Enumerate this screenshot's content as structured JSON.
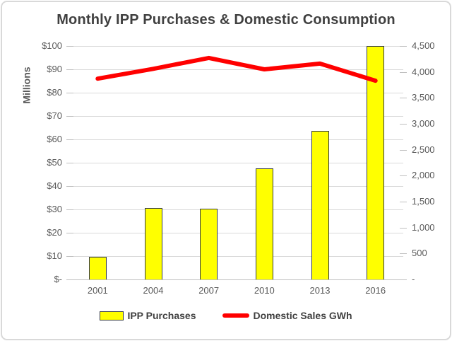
{
  "title": "Monthly IPP Purchases & Domestic Consumption",
  "left_axis": {
    "title": "Millions",
    "tick_labels": [
      "$100",
      "$90",
      "$80",
      "$70",
      "$60",
      "$50",
      "$40",
      "$30",
      "$20",
      "$10",
      "$-"
    ],
    "min": 0,
    "max": 100
  },
  "right_axis": {
    "tick_labels": [
      "4,500",
      "4,000",
      "3,500",
      "3,000",
      "2,500",
      "2,000",
      "1,500",
      "1,000",
      "500",
      "-"
    ],
    "min": 0,
    "max": 4500
  },
  "legend": {
    "items": [
      {
        "label": "IPP Purchases",
        "swatch": "yellow-bar"
      },
      {
        "label": "Domestic Sales GWh",
        "swatch": "red-line"
      }
    ]
  },
  "colors": {
    "bar_fill": "#ffff00",
    "bar_border": "#343a46",
    "line": "#ff0000",
    "title_text": "#404040",
    "axis_text": "#595959",
    "gridline": "#d9d9d9",
    "axis_line": "#bfbfbf",
    "frame_border": "#d9d9d9"
  },
  "chart_data": {
    "type": "bar",
    "subtype": "combo-bar-line",
    "title": "Monthly IPP Purchases & Domestic Consumption",
    "categories": [
      "2001",
      "2004",
      "2007",
      "2010",
      "2013",
      "2016"
    ],
    "series": [
      {
        "name": "IPP Purchases",
        "type": "bar",
        "axis": "left",
        "unit": "$ millions",
        "values": [
          9.7,
          30.5,
          30.2,
          47.5,
          63.5,
          99.9
        ]
      },
      {
        "name": "Domestic Sales GWh",
        "type": "line",
        "axis": "right",
        "unit": "GWh",
        "values": [
          3870,
          4060,
          4270,
          4050,
          4160,
          3830
        ]
      }
    ],
    "xlabel": "",
    "ylabel_left": "Millions",
    "ylabel_right": "",
    "ylim_left": [
      0,
      100
    ],
    "ylim_right": [
      0,
      4500
    ],
    "grid": true,
    "legend_position": "bottom"
  }
}
